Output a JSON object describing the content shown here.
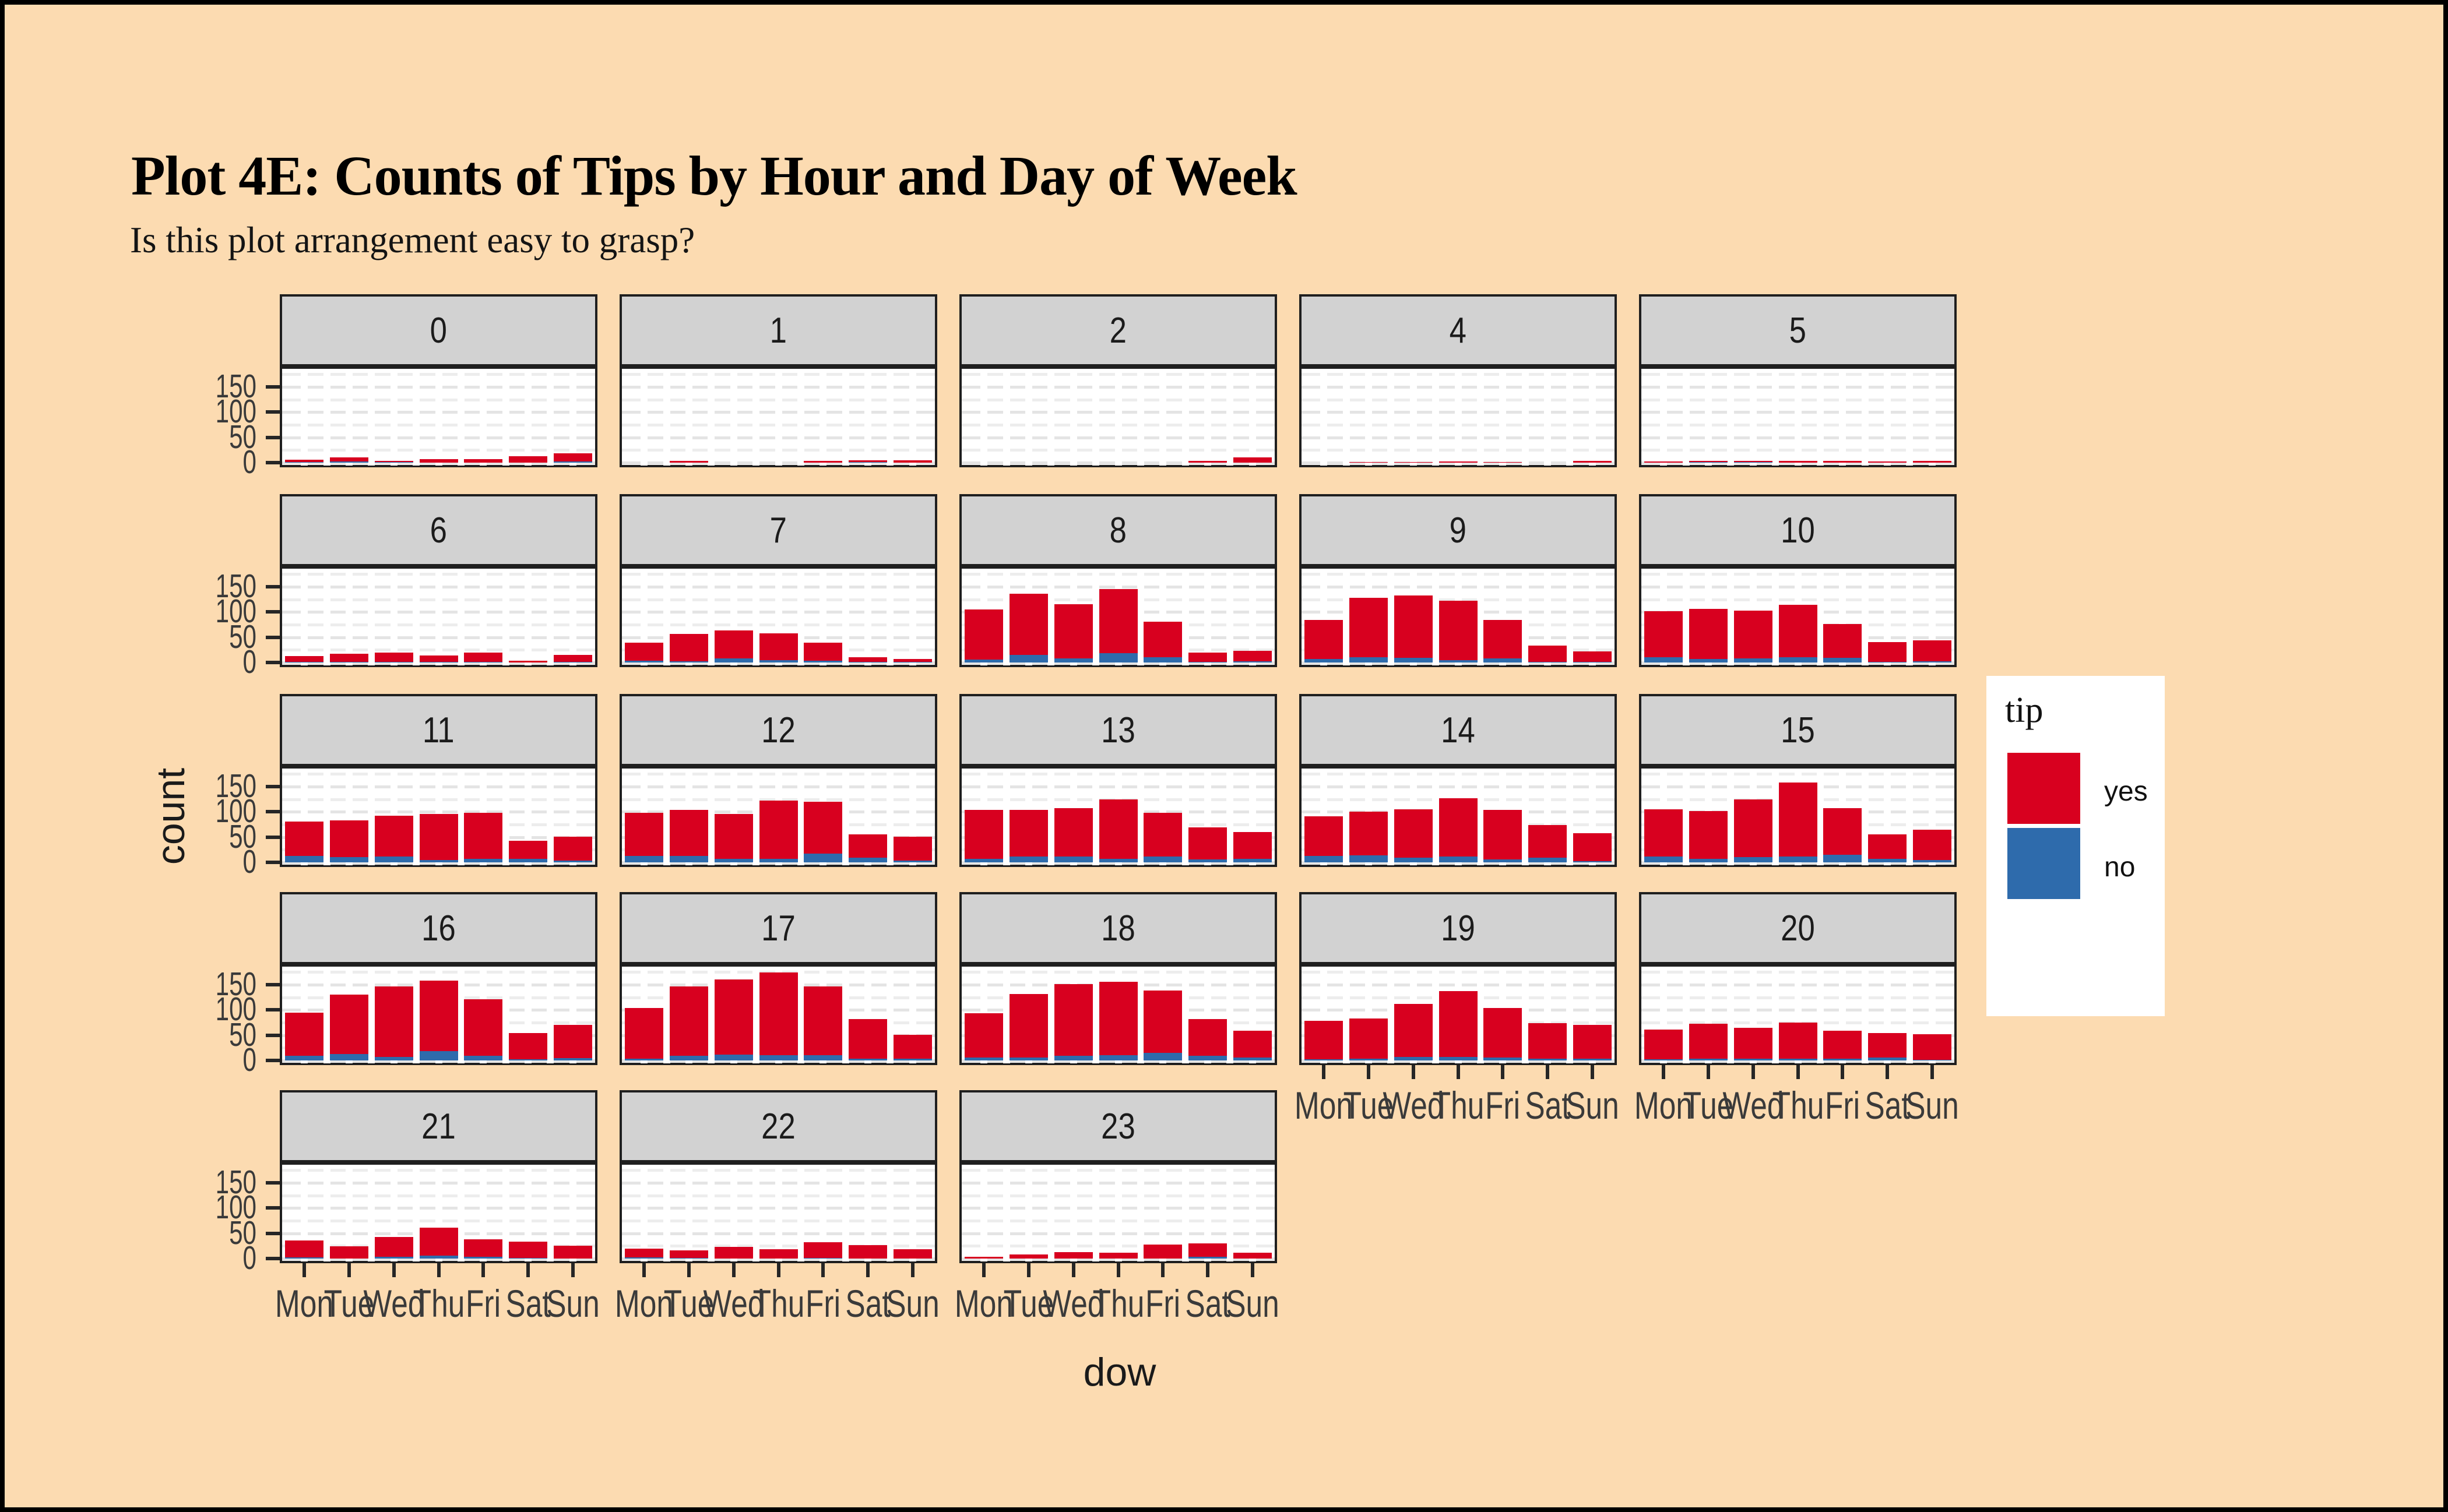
{
  "title": "Plot 4E: Counts of Tips by Hour and Day of Week",
  "subtitle": "Is this plot arrangement easy to grasp?",
  "axes": {
    "x_title": "dow",
    "y_title": "count",
    "x_tick_labels": [
      "Mon",
      "Tue",
      "Wed",
      "Thu",
      "Fri",
      "Sat",
      "Sun"
    ],
    "y_tick_labels": [
      "0",
      "50",
      "100",
      "150"
    ]
  },
  "legend": {
    "title": "tip",
    "items": [
      {
        "label": "yes",
        "color": "#D8001F"
      },
      {
        "label": "no",
        "color": "#2E6BAC"
      }
    ]
  },
  "colors": {
    "background": "#FCDBB1",
    "strip": "#D2D2D2",
    "panel": "#FFFFFF",
    "border": "#1F1F1F",
    "grid_major": "#E4E4E4",
    "grid_minor": "#EDEDED",
    "grid_vertical": "#EAEAEA",
    "tick_text": "#3A3A3A",
    "yes": "#D8001F",
    "no": "#2E6BAC"
  },
  "chart_data": {
    "type": "bar",
    "stacked": true,
    "facet_variable": "hour",
    "xlabel": "dow",
    "ylabel": "count",
    "categories": [
      "Mon",
      "Tue",
      "Wed",
      "Thu",
      "Fri",
      "Sat",
      "Sun"
    ],
    "y_ticks": [
      0,
      50,
      100,
      150
    ],
    "ylim": [
      0,
      186
    ],
    "grid": true,
    "legend_position": "right",
    "stack_order_bottom_to_top": [
      "no",
      "yes"
    ],
    "facet_grid": [
      [
        "0",
        "1",
        "2",
        "4",
        "5"
      ],
      [
        "6",
        "7",
        "8",
        "9",
        "10"
      ],
      [
        "11",
        "12",
        "13",
        "14",
        "15"
      ],
      [
        "16",
        "17",
        "18",
        "19",
        "20"
      ],
      [
        "21",
        "22",
        "23"
      ]
    ],
    "facets": [
      {
        "hour": "0",
        "yes": [
          5,
          8,
          2,
          7,
          7,
          13,
          16
        ],
        "no": [
          1,
          2,
          1,
          0,
          0,
          0,
          2
        ]
      },
      {
        "hour": "1",
        "yes": [
          0,
          3,
          0,
          0,
          4,
          4,
          5
        ],
        "no": [
          0,
          0,
          0,
          0,
          0,
          1,
          0
        ]
      },
      {
        "hour": "2",
        "yes": [
          0,
          0,
          0,
          0,
          0,
          3,
          10
        ],
        "no": [
          0,
          0,
          0,
          0,
          0,
          0,
          0
        ]
      },
      {
        "hour": "4",
        "yes": [
          0,
          1,
          1,
          2,
          1,
          0,
          3
        ],
        "no": [
          0,
          0,
          0,
          0,
          0,
          0,
          0
        ]
      },
      {
        "hour": "5",
        "yes": [
          2,
          2,
          2,
          4,
          4,
          2,
          3
        ],
        "no": [
          0,
          1,
          1,
          0,
          0,
          0,
          0
        ]
      },
      {
        "hour": "6",
        "yes": [
          11,
          16,
          19,
          13,
          19,
          4,
          14
        ],
        "no": [
          1,
          1,
          1,
          1,
          1,
          0,
          1
        ]
      },
      {
        "hour": "7",
        "yes": [
          36,
          54,
          55,
          53,
          36,
          9,
          6
        ],
        "no": [
          4,
          2,
          8,
          5,
          4,
          1,
          1
        ]
      },
      {
        "hour": "8",
        "yes": [
          99,
          121,
          107,
          127,
          70,
          19,
          21
        ],
        "no": [
          6,
          15,
          8,
          18,
          10,
          1,
          2
        ]
      },
      {
        "hour": "9",
        "yes": [
          77,
          118,
          124,
          118,
          76,
          32,
          21
        ],
        "no": [
          7,
          10,
          9,
          5,
          8,
          1,
          1
        ]
      },
      {
        "hour": "10",
        "yes": [
          91,
          99,
          95,
          104,
          67,
          39,
          42
        ],
        "no": [
          10,
          7,
          8,
          10,
          9,
          1,
          2
        ]
      },
      {
        "hour": "11",
        "yes": [
          68,
          73,
          81,
          91,
          91,
          36,
          47
        ],
        "no": [
          13,
          10,
          11,
          5,
          7,
          7,
          3
        ]
      },
      {
        "hour": "12",
        "yes": [
          85,
          91,
          89,
          116,
          103,
          46,
          47
        ],
        "no": [
          13,
          13,
          7,
          7,
          17,
          9,
          4
        ]
      },
      {
        "hour": "13",
        "yes": [
          97,
          92,
          96,
          118,
          87,
          64,
          53
        ],
        "no": [
          7,
          12,
          12,
          7,
          11,
          6,
          7
        ]
      },
      {
        "hour": "14",
        "yes": [
          79,
          87,
          96,
          115,
          98,
          65,
          56
        ],
        "no": [
          13,
          14,
          9,
          12,
          6,
          9,
          2
        ]
      },
      {
        "hour": "15",
        "yes": [
          93,
          95,
          114,
          147,
          92,
          49,
          60
        ],
        "no": [
          11,
          7,
          10,
          11,
          15,
          7,
          5
        ]
      },
      {
        "hour": "16",
        "yes": [
          85,
          118,
          140,
          140,
          112,
          52,
          66
        ],
        "no": [
          9,
          13,
          7,
          18,
          9,
          2,
          5
        ]
      },
      {
        "hour": "17",
        "yes": [
          100,
          137,
          149,
          164,
          136,
          78,
          47
        ],
        "no": [
          4,
          9,
          12,
          10,
          10,
          3,
          3
        ]
      },
      {
        "hour": "18",
        "yes": [
          88,
          126,
          142,
          146,
          123,
          73,
          53
        ],
        "no": [
          6,
          6,
          9,
          10,
          15,
          9,
          6
        ]
      },
      {
        "hour": "19",
        "yes": [
          76,
          80,
          105,
          131,
          98,
          71,
          67
        ],
        "no": [
          2,
          4,
          7,
          7,
          6,
          4,
          3
        ]
      },
      {
        "hour": "20",
        "yes": [
          59,
          69,
          61,
          72,
          56,
          48,
          51
        ],
        "no": [
          2,
          4,
          3,
          3,
          4,
          6,
          1
        ]
      },
      {
        "hour": "21",
        "yes": [
          34,
          24,
          39,
          55,
          35,
          32,
          25
        ],
        "no": [
          2,
          0,
          4,
          6,
          4,
          1,
          0
        ]
      },
      {
        "hour": "22",
        "yes": [
          17,
          15,
          23,
          18,
          31,
          26,
          19
        ],
        "no": [
          2,
          1,
          0,
          0,
          1,
          0,
          0
        ]
      },
      {
        "hour": "23",
        "yes": [
          3,
          8,
          13,
          11,
          28,
          27,
          11
        ],
        "no": [
          0,
          0,
          0,
          0,
          0,
          3,
          0
        ]
      }
    ]
  }
}
